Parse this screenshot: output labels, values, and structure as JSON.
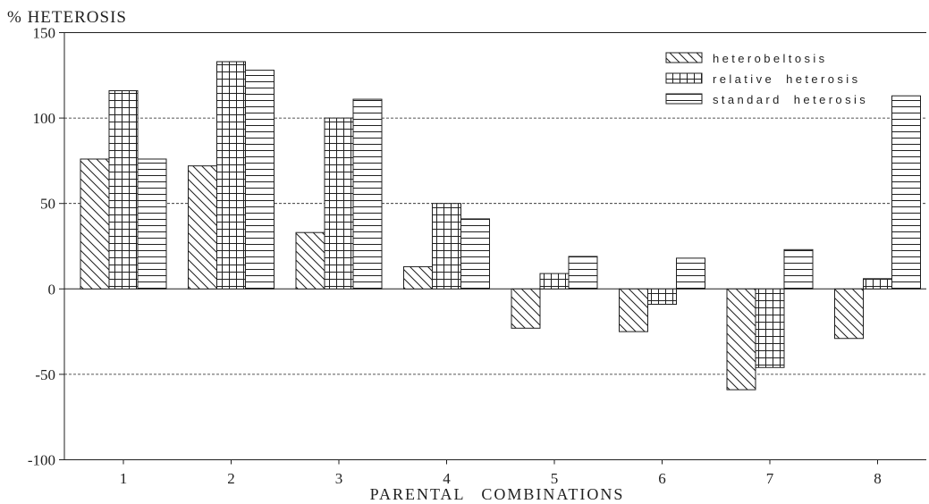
{
  "chart_data": {
    "type": "bar",
    "ylabel": "% HETEROSIS",
    "xlabel": "PARENTAL COMBINATIONS",
    "categories": [
      "1",
      "2",
      "3",
      "4",
      "5",
      "6",
      "7",
      "8"
    ],
    "ylim": [
      -100,
      150
    ],
    "yticks": [
      150,
      100,
      50,
      0,
      -50,
      -100
    ],
    "grid": true,
    "grid_style": "dashed",
    "legend_position": "top-right",
    "series": [
      {
        "name": "heterobeltosis",
        "hatch": "diagonal",
        "values": [
          76,
          72,
          33,
          13,
          -23,
          -25,
          -59,
          -29
        ]
      },
      {
        "name": "relative heterosis",
        "hatch": "grid",
        "values": [
          116,
          133,
          100,
          50,
          9,
          -9,
          -46,
          6
        ]
      },
      {
        "name": "standard heterosis",
        "hatch": "horizontal",
        "values": [
          76,
          128,
          111,
          41,
          19,
          18,
          23,
          113
        ]
      }
    ],
    "colors": {
      "ink": "#1f1f1f",
      "background": "#ffffff"
    }
  }
}
